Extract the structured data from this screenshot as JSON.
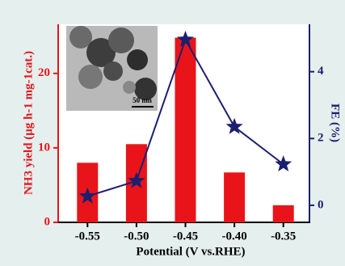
{
  "chart_data": {
    "type": "bar",
    "x_label": "Potential (V vs.RHE)",
    "y_label": "NH3 yield (μg h-1 mg-1cat.)",
    "y2_label": "FE (%)",
    "annotations": [
      "50 nm"
    ],
    "categories": [
      "-0.55",
      "-0.50",
      "-0.45",
      "-0.40",
      "-0.35"
    ],
    "series": [
      {
        "type": "bar",
        "color": "#e8141a",
        "values": [
          8.0,
          10.5,
          24.8,
          6.7,
          2.3
        ]
      },
      {
        "type": "line",
        "color": "#1c1f6e",
        "axis": "y2",
        "values": [
          0.27,
          0.73,
          4.96,
          2.35,
          1.23
        ]
      }
    ],
    "ylim": [
      0,
      26.6
    ],
    "yticks": [
      0,
      10,
      20
    ],
    "y2lim": [
      -0.51,
      5.42
    ],
    "y2ticks": [
      0,
      2,
      4
    ]
  }
}
